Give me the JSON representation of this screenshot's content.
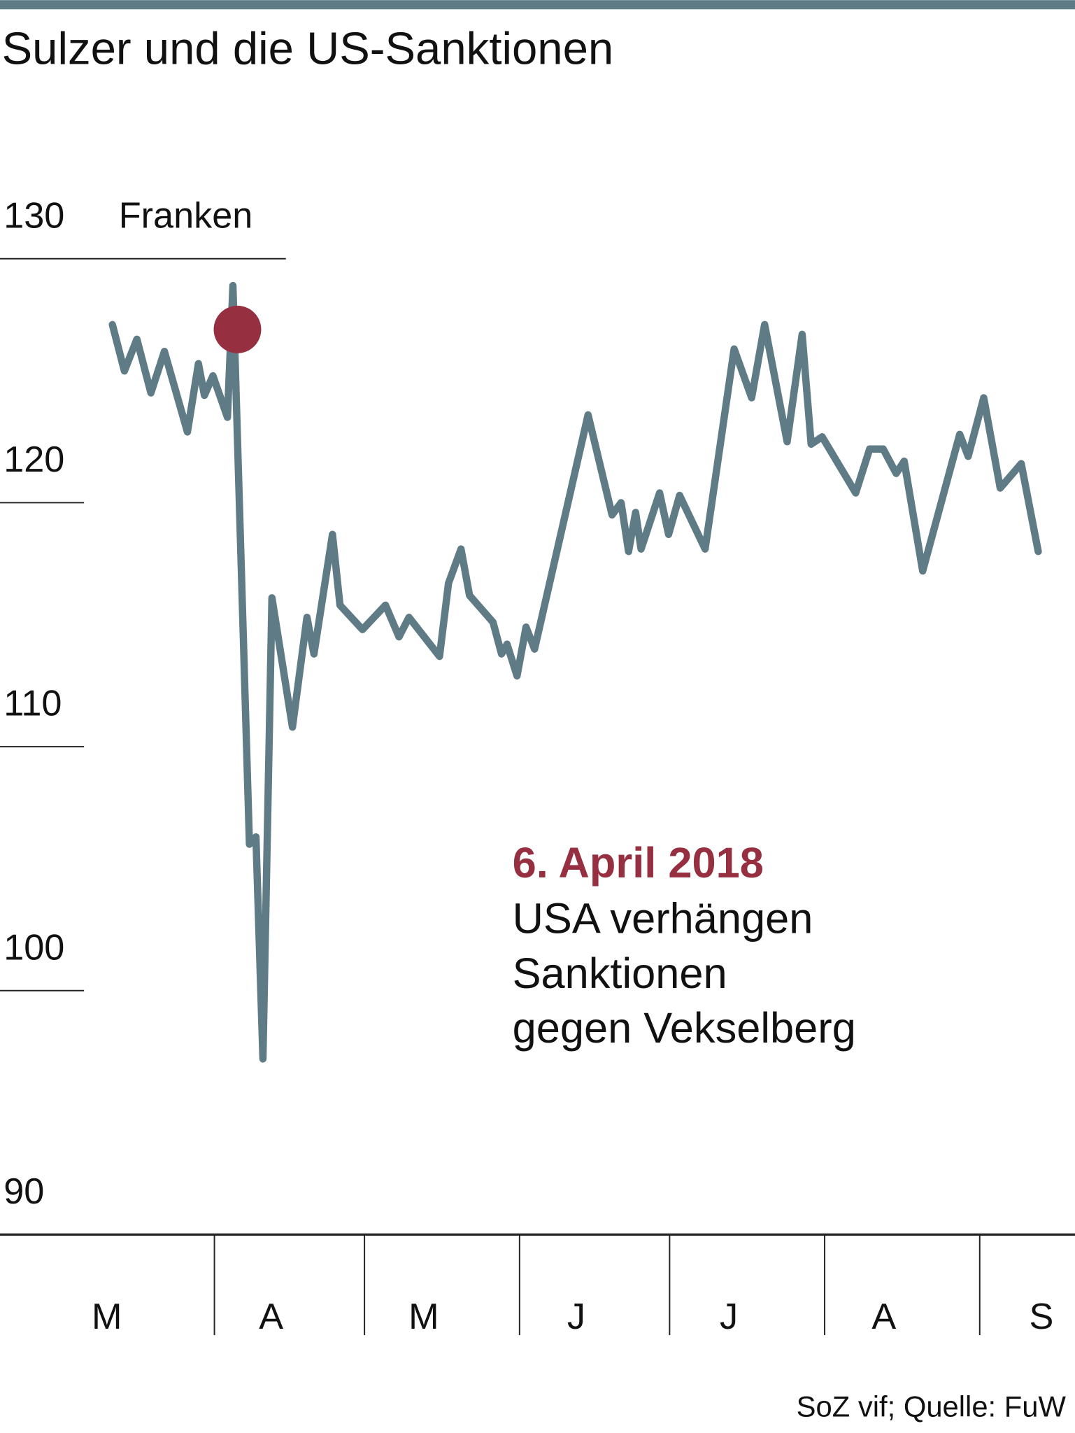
{
  "colors": {
    "line": "#5f7b85",
    "highlight": "#962f3f",
    "text": "#111111",
    "grid": "#222222"
  },
  "chart_data": {
    "type": "line",
    "title": "Sulzer und die US-Sanktionen",
    "unit_label": "Franken",
    "xlabel": "",
    "ylabel": "Franken",
    "x_unit": "days since 1 March 2018",
    "ylim": [
      90,
      130
    ],
    "xlim": [
      0,
      205
    ],
    "y_ticks": [
      130,
      120,
      110,
      100,
      90
    ],
    "x_tick_labels": [
      "M",
      "A",
      "M",
      "J",
      "J",
      "A",
      "S"
    ],
    "x_month_starts": [
      0,
      31,
      61,
      92,
      122,
      153,
      184
    ],
    "series": [
      {
        "name": "Sulzer",
        "x": [
          10.6,
          13.0,
          15.5,
          18.3,
          21.0,
          25.6,
          27.8,
          29.0,
          30.7,
          33.6,
          34.7,
          38.0,
          39.3,
          40.7,
          42.5,
          46.6,
          49.5,
          50.9,
          54.6,
          56.1,
          60.6,
          65.2,
          67.9,
          69.9,
          76.0,
          77.8,
          80.3,
          82.0,
          86.7,
          88.4,
          89.5,
          91.5,
          93.3,
          95.0,
          105.7,
          110.5,
          112.3,
          113.8,
          115.2,
          116.3,
          120.0,
          121.8,
          124.0,
          129.1,
          134.9,
          138.4,
          141.0,
          145.5,
          148.5,
          150.3,
          152.5,
          159.2,
          162.0,
          164.7,
          167.3,
          168.9,
          172.6,
          180.0,
          181.7,
          184.8,
          188.1,
          192.3,
          195.7
        ],
        "values": [
          127.3,
          125.4,
          126.7,
          124.5,
          126.2,
          122.9,
          125.7,
          124.4,
          125.2,
          123.5,
          128.9,
          106.0,
          106.3,
          97.2,
          116.1,
          110.8,
          115.3,
          113.8,
          118.7,
          115.8,
          114.8,
          115.8,
          114.5,
          115.3,
          113.7,
          116.7,
          118.1,
          116.2,
          115.1,
          113.8,
          114.2,
          112.9,
          114.9,
          114.0,
          123.6,
          119.5,
          120.0,
          118.0,
          119.6,
          118.1,
          120.4,
          118.7,
          120.3,
          118.1,
          126.3,
          124.3,
          127.3,
          122.5,
          126.9,
          122.4,
          122.7,
          120.4,
          122.2,
          122.2,
          121.2,
          121.7,
          117.2,
          122.8,
          121.9,
          124.3,
          120.6,
          121.6,
          118.0
        ]
      }
    ],
    "highlight_point": {
      "x": 35.6,
      "y": 127.1
    },
    "annotation": {
      "date": "6. April 2018",
      "lines": [
        "USA verhängen",
        "Sanktionen",
        "gegen Vekselberg"
      ]
    },
    "source": "SoZ vif; Quelle: FuW",
    "grid": true,
    "legend": "none"
  }
}
